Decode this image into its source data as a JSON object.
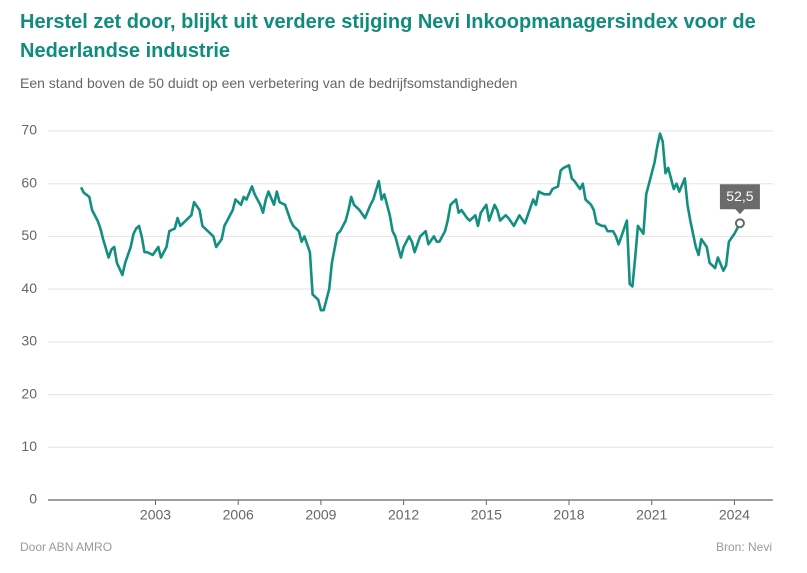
{
  "chart_data": {
    "type": "line",
    "title": "Herstel zet door, blijkt uit verdere stijging Nevi Inkoopmanagersindex voor de Nederlandse industrie",
    "subtitle": "Een stand boven de 50 duidt op een verbetering van de bedrijfsomstandigheden",
    "source_left": "Door ABN AMRO",
    "source_right": "Bron: Nevi",
    "x": [
      2000.3,
      2000.4,
      2000.6,
      2000.7,
      2000.9,
      2001.0,
      2001.1,
      2001.3,
      2001.4,
      2001.5,
      2001.6,
      2001.8,
      2001.9,
      2002.1,
      2002.2,
      2002.3,
      2002.4,
      2002.5,
      2002.6,
      2002.7,
      2002.9,
      2003.1,
      2003.2,
      2003.4,
      2003.5,
      2003.7,
      2003.8,
      2003.9,
      2004.1,
      2004.3,
      2004.4,
      2004.6,
      2004.7,
      2004.9,
      2005.1,
      2005.2,
      2005.4,
      2005.5,
      2005.6,
      2005.8,
      2005.9,
      2006.1,
      2006.2,
      2006.3,
      2006.5,
      2006.6,
      2006.8,
      2006.9,
      2007.0,
      2007.1,
      2007.3,
      2007.4,
      2007.5,
      2007.7,
      2007.9,
      2008.0,
      2008.2,
      2008.3,
      2008.4,
      2008.6,
      2008.7,
      2008.9,
      2009.0,
      2009.1,
      2009.3,
      2009.4,
      2009.6,
      2009.7,
      2009.9,
      2010.0,
      2010.1,
      2010.2,
      2010.4,
      2010.6,
      2010.8,
      2010.9,
      2011.1,
      2011.2,
      2011.3,
      2011.5,
      2011.6,
      2011.7,
      2011.9,
      2012.0,
      2012.2,
      2012.3,
      2012.4,
      2012.6,
      2012.8,
      2012.9,
      2013.1,
      2013.2,
      2013.3,
      2013.5,
      2013.6,
      2013.7,
      2013.9,
      2014.0,
      2014.1,
      2014.3,
      2014.4,
      2014.6,
      2014.7,
      2014.8,
      2015.0,
      2015.1,
      2015.3,
      2015.4,
      2015.5,
      2015.7,
      2015.8,
      2016.0,
      2016.1,
      2016.2,
      2016.4,
      2016.5,
      2016.7,
      2016.8,
      2016.9,
      2017.1,
      2017.3,
      2017.4,
      2017.6,
      2017.7,
      2017.8,
      2018.0,
      2018.1,
      2018.2,
      2018.4,
      2018.5,
      2018.6,
      2018.8,
      2018.9,
      2019.0,
      2019.2,
      2019.3,
      2019.4,
      2019.6,
      2019.7,
      2019.8,
      2019.9,
      2020.1,
      2020.2,
      2020.3,
      2020.4,
      2020.5,
      2020.7,
      2020.8,
      2020.9,
      2021.1,
      2021.2,
      2021.3,
      2021.4,
      2021.5,
      2021.6,
      2021.8,
      2021.9,
      2022.0,
      2022.2,
      2022.3,
      2022.4,
      2022.6,
      2022.7,
      2022.8,
      2023.0,
      2023.1,
      2023.3,
      2023.4,
      2023.6,
      2023.7,
      2023.8,
      2024.0,
      2024.2
    ],
    "series": [
      {
        "name": "Nevi Inkoopmanagersindex",
        "color": "#128f80",
        "values": [
          59.3,
          58.3,
          57.5,
          55,
          53,
          51.5,
          49.5,
          46,
          47.5,
          48,
          45,
          42.7,
          45,
          48,
          50.5,
          51.5,
          52,
          50,
          47,
          47,
          46.5,
          48,
          46,
          48,
          51,
          51.5,
          53.5,
          52,
          53,
          54,
          56.5,
          55,
          52,
          51,
          50,
          48,
          49.5,
          52,
          53,
          55,
          57,
          56,
          57.5,
          57,
          59.5,
          58,
          56,
          54.5,
          57,
          58.5,
          56,
          58.5,
          56.5,
          56,
          53,
          52,
          51,
          49,
          50,
          47,
          39,
          38,
          36,
          36,
          40,
          45,
          50.5,
          51,
          53,
          55,
          57.5,
          56,
          55,
          53.5,
          56,
          57,
          60.5,
          57,
          58,
          54,
          51,
          50,
          46,
          48,
          50,
          49,
          47,
          50,
          51,
          48.5,
          50,
          49,
          49,
          51,
          53,
          56,
          57,
          54.5,
          55,
          53.5,
          53,
          54,
          52,
          54.5,
          56,
          53,
          56,
          55,
          53,
          54,
          53.5,
          52,
          53,
          54,
          52.5,
          54,
          57,
          56,
          58.5,
          58,
          58,
          59,
          59.5,
          62.5,
          63,
          63.5,
          61,
          60.5,
          59,
          60,
          57,
          56,
          55,
          52.5,
          52,
          52,
          51,
          51,
          50,
          48.5,
          50,
          53,
          41,
          40.5,
          46,
          52,
          50.5,
          58,
          60,
          64,
          67,
          69.5,
          68,
          62,
          63,
          59,
          60,
          58.5,
          61,
          56,
          53,
          48,
          46.5,
          49.5,
          48,
          45,
          44,
          46,
          43.5,
          44.5,
          49,
          50.5,
          52.5
        ],
        "value_labels": [
          null,
          null,
          null,
          null,
          null,
          null,
          null,
          null,
          null,
          null,
          null,
          null,
          null,
          null,
          null,
          null,
          null,
          null,
          null,
          null,
          null,
          null,
          null,
          null,
          null,
          null,
          null,
          null,
          null,
          null,
          null,
          null,
          null,
          null,
          null,
          null,
          null,
          null,
          null,
          null,
          null,
          null,
          null,
          null,
          null,
          null,
          null,
          null,
          null,
          null,
          null,
          null,
          null,
          null,
          null,
          null,
          null,
          null,
          null,
          null,
          null,
          null,
          null,
          null,
          null,
          null,
          null,
          null,
          null,
          null,
          null,
          null,
          null,
          null,
          null,
          null,
          null,
          null,
          null,
          null,
          null,
          null,
          null,
          null,
          null,
          null,
          null,
          null,
          null,
          null,
          null,
          null,
          null,
          null,
          null,
          null,
          null,
          null,
          null,
          null,
          null,
          null,
          null,
          null,
          null,
          null,
          null,
          null,
          null,
          null,
          null,
          null,
          null,
          null,
          null,
          null,
          null,
          null,
          null,
          null,
          null,
          null,
          null,
          null,
          null,
          null,
          null,
          null,
          null,
          null,
          null,
          null,
          null,
          null,
          null,
          null,
          null,
          null,
          null,
          null,
          null,
          null,
          null,
          null,
          null,
          null,
          null,
          null,
          null,
          null,
          null,
          null,
          null,
          null,
          null,
          null,
          null,
          null,
          null,
          null,
          null,
          null,
          null,
          null,
          null,
          null,
          null,
          null,
          null,
          null,
          null,
          null,
          "52,5"
        ]
      }
    ],
    "xlim": [
      1999.1,
      2025.4
    ],
    "xticks": [
      2003,
      2006,
      2009,
      2012,
      2015,
      2018,
      2021,
      2024
    ],
    "ylim": [
      0,
      70
    ],
    "yticks": [
      0,
      10,
      20,
      30,
      40,
      50,
      60,
      70
    ],
    "grid": true
  }
}
